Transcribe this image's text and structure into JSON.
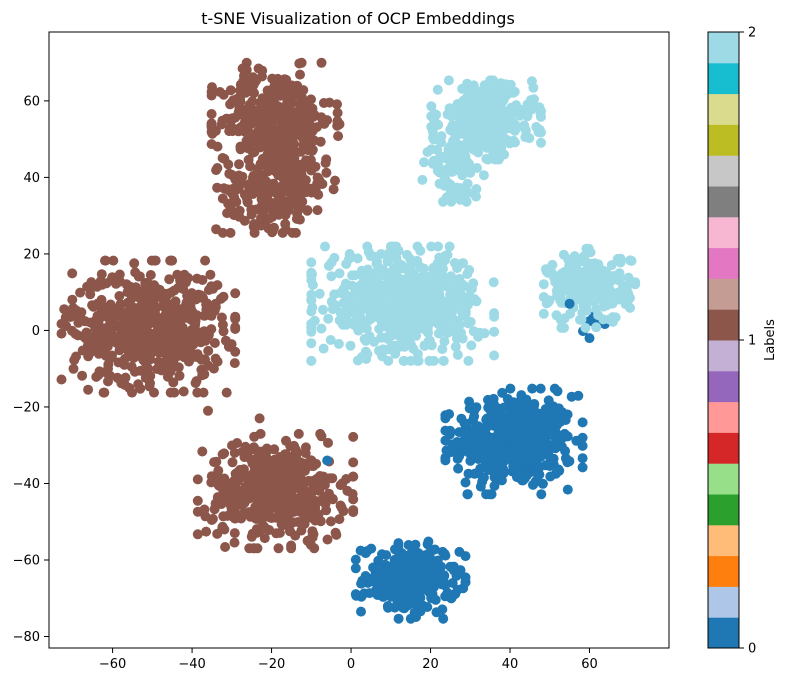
{
  "chart_data": {
    "type": "scatter",
    "title": "t-SNE Visualization of OCP Embeddings",
    "xlabel": "",
    "ylabel": "",
    "xlim": [
      -76,
      80
    ],
    "ylim": [
      -83,
      78
    ],
    "xticks": [
      -60,
      -40,
      -20,
      0,
      20,
      40,
      60
    ],
    "yticks": [
      -80,
      -60,
      -40,
      -20,
      0,
      20,
      40,
      60
    ],
    "grid": false,
    "legend": "none",
    "colors": {
      "label_0": "#1f77b4",
      "label_1": "#8c564b",
      "label_2": "#9edae5"
    },
    "clusters": [
      {
        "label": 2,
        "cx": 34,
        "cy": 55,
        "sx": 6,
        "sy": 4.5,
        "count": 340
      },
      {
        "label": 2,
        "cx": 26,
        "cy": 44,
        "sx": 3.5,
        "sy": 4.5,
        "count": 110
      },
      {
        "label": 2,
        "cx": 13,
        "cy": 7,
        "sx": 10,
        "sy": 6.5,
        "count": 600
      },
      {
        "label": 2,
        "cx": 60,
        "cy": 11,
        "sx": 5,
        "sy": 4.5,
        "count": 250
      },
      {
        "label": 1,
        "cx": -19,
        "cy": 55,
        "sx": 7,
        "sy": 6.5,
        "count": 360
      },
      {
        "label": 1,
        "cx": -19,
        "cy": 37,
        "sx": 6.5,
        "sy": 5,
        "count": 240
      },
      {
        "label": 1,
        "cx": -51,
        "cy": 1,
        "sx": 9.5,
        "sy": 7.5,
        "count": 600
      },
      {
        "label": 1,
        "cx": -19,
        "cy": -42,
        "sx": 8.5,
        "sy": 6.5,
        "count": 480
      },
      {
        "label": 0,
        "cx": 41,
        "cy": -29,
        "sx": 7.5,
        "sy": 6,
        "count": 480
      },
      {
        "label": 0,
        "cx": 15,
        "cy": -65,
        "sx": 6,
        "sy": 4.5,
        "count": 260
      },
      {
        "label": 0,
        "cx": 61,
        "cy": 3,
        "sx": 1.5,
        "sy": 1.5,
        "count": 8
      }
    ],
    "outliers": [
      {
        "label": 0,
        "x": -6,
        "y": -34
      },
      {
        "label": 0,
        "x": 60,
        "y": -2
      },
      {
        "label": 0,
        "x": 55,
        "y": 7
      },
      {
        "label": 1,
        "x": -36,
        "y": -21
      },
      {
        "label": 1,
        "x": -23,
        "y": -23
      }
    ],
    "colorbar": {
      "label": "Labels",
      "ticks": [
        "0",
        "1",
        "2"
      ],
      "colors": [
        "#1f77b4",
        "#aec7e8",
        "#ff7f0e",
        "#ffbb78",
        "#2ca02c",
        "#98df8a",
        "#d62728",
        "#ff9896",
        "#9467bd",
        "#c5b0d5",
        "#8c564b",
        "#c49c94",
        "#e377c2",
        "#f7b6d2",
        "#7f7f7f",
        "#c7c7c7",
        "#bcbd22",
        "#dbdb8d",
        "#17becf",
        "#9edae5"
      ]
    }
  }
}
